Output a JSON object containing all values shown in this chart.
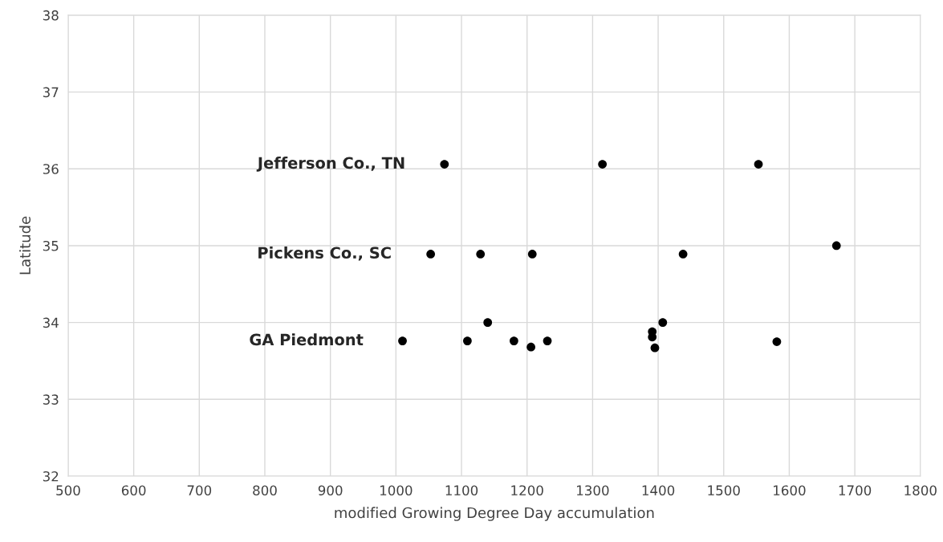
{
  "chart_data": {
    "type": "scatter",
    "xlabel": "modified Growing Degree Day accumulation",
    "ylabel": "Latitude",
    "x": [
      1074,
      1315,
      1553,
      1053,
      1129,
      1208,
      1438,
      1672,
      1010,
      1109,
      1140,
      1180,
      1206,
      1231,
      1391,
      1391,
      1395,
      1407,
      1581
    ],
    "series": [
      {
        "color": "#000000",
        "values": [
          36.06,
          36.06,
          36.06,
          34.89,
          34.89,
          34.89,
          34.89,
          35.0,
          33.76,
          33.76,
          34.0,
          33.76,
          33.68,
          33.76,
          33.88,
          33.81,
          33.67,
          34.0,
          33.75
        ]
      }
    ],
    "marker": "circle",
    "grid": true,
    "legend": false,
    "xlim": [
      500,
      1800
    ],
    "xticks": [
      500,
      600,
      700,
      800,
      900,
      1000,
      1100,
      1200,
      1300,
      1400,
      1500,
      1600,
      1700,
      1800
    ],
    "ylim": [
      32,
      38
    ],
    "yticks": [
      32,
      33,
      34,
      35,
      36,
      37,
      38
    ],
    "annotations": [
      {
        "text": "Jefferson Co., TN",
        "x": 1074,
        "y": 36.06
      },
      {
        "text": "Pickens Co., SC",
        "x": 1053,
        "y": 34.89
      },
      {
        "text": "GA Piedmont",
        "x": 1010,
        "y": 33.76
      }
    ]
  }
}
